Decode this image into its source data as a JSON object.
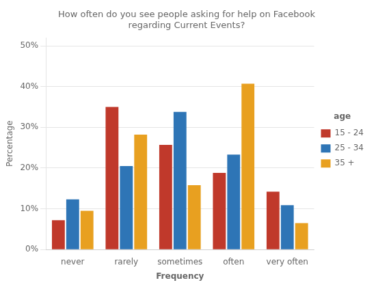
{
  "chart_data": {
    "type": "bar",
    "title": "How often do you see people asking for help on Facebook\nregarding Current Events?",
    "xlabel": "Frequency",
    "ylabel": "Percentage",
    "categories": [
      "never",
      "rarely",
      "sometimes",
      "often",
      "very often"
    ],
    "series": [
      {
        "name": "15 - 24",
        "color": "#c0392b",
        "values": [
          7.2,
          35.0,
          25.7,
          18.8,
          14.2
        ]
      },
      {
        "name": "25 - 34",
        "color": "#2e75b6",
        "values": [
          12.3,
          20.5,
          33.8,
          23.3,
          10.9
        ]
      },
      {
        "name": "35 +",
        "color": "#e8a020",
        "values": [
          9.5,
          28.2,
          15.8,
          40.7,
          6.5
        ]
      }
    ],
    "ylim": [
      0,
      52
    ],
    "yticks": [
      {
        "value": 0,
        "label": "0%"
      },
      {
        "value": 10,
        "label": "10%"
      },
      {
        "value": 20,
        "label": "20%"
      },
      {
        "value": 30,
        "label": "30%"
      },
      {
        "value": 40,
        "label": "40%"
      },
      {
        "value": 50,
        "label": "50%"
      }
    ],
    "grid": true,
    "legend": "right",
    "legend_title": "age"
  }
}
